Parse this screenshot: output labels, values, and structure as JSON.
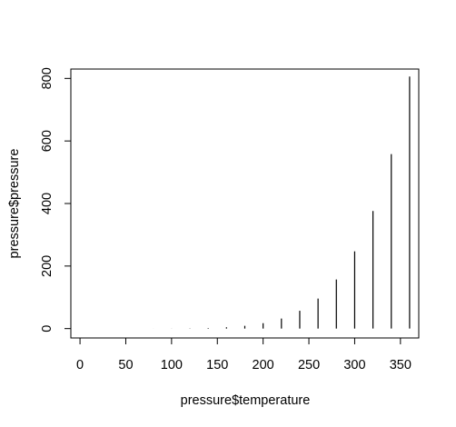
{
  "chart_data": {
    "type": "bar",
    "subtype": "histogram-like vertical lines (R plot type='h')",
    "title": "",
    "xlabel": "pressure$temperature",
    "ylabel": "pressure$pressure",
    "xlim": [
      -10,
      370
    ],
    "ylim": [
      -30,
      830
    ],
    "x_ticks": [
      0,
      50,
      100,
      150,
      200,
      250,
      300,
      350
    ],
    "y_ticks": [
      0,
      200,
      400,
      600,
      800
    ],
    "grid": false,
    "legend": "none",
    "line_color": "#000000",
    "series": [
      {
        "x": [
          0,
          20,
          40,
          60,
          80,
          100,
          120,
          140,
          160,
          180,
          200,
          220,
          240,
          260,
          280,
          300,
          320,
          340,
          360
        ],
        "values": [
          0.0002,
          0.0012,
          0.006,
          0.03,
          0.09,
          0.27,
          0.75,
          1.85,
          4.2,
          8.8,
          17.3,
          32.1,
          57.0,
          96.0,
          157.0,
          247.0,
          376.0,
          558.0,
          806.0
        ]
      }
    ]
  }
}
